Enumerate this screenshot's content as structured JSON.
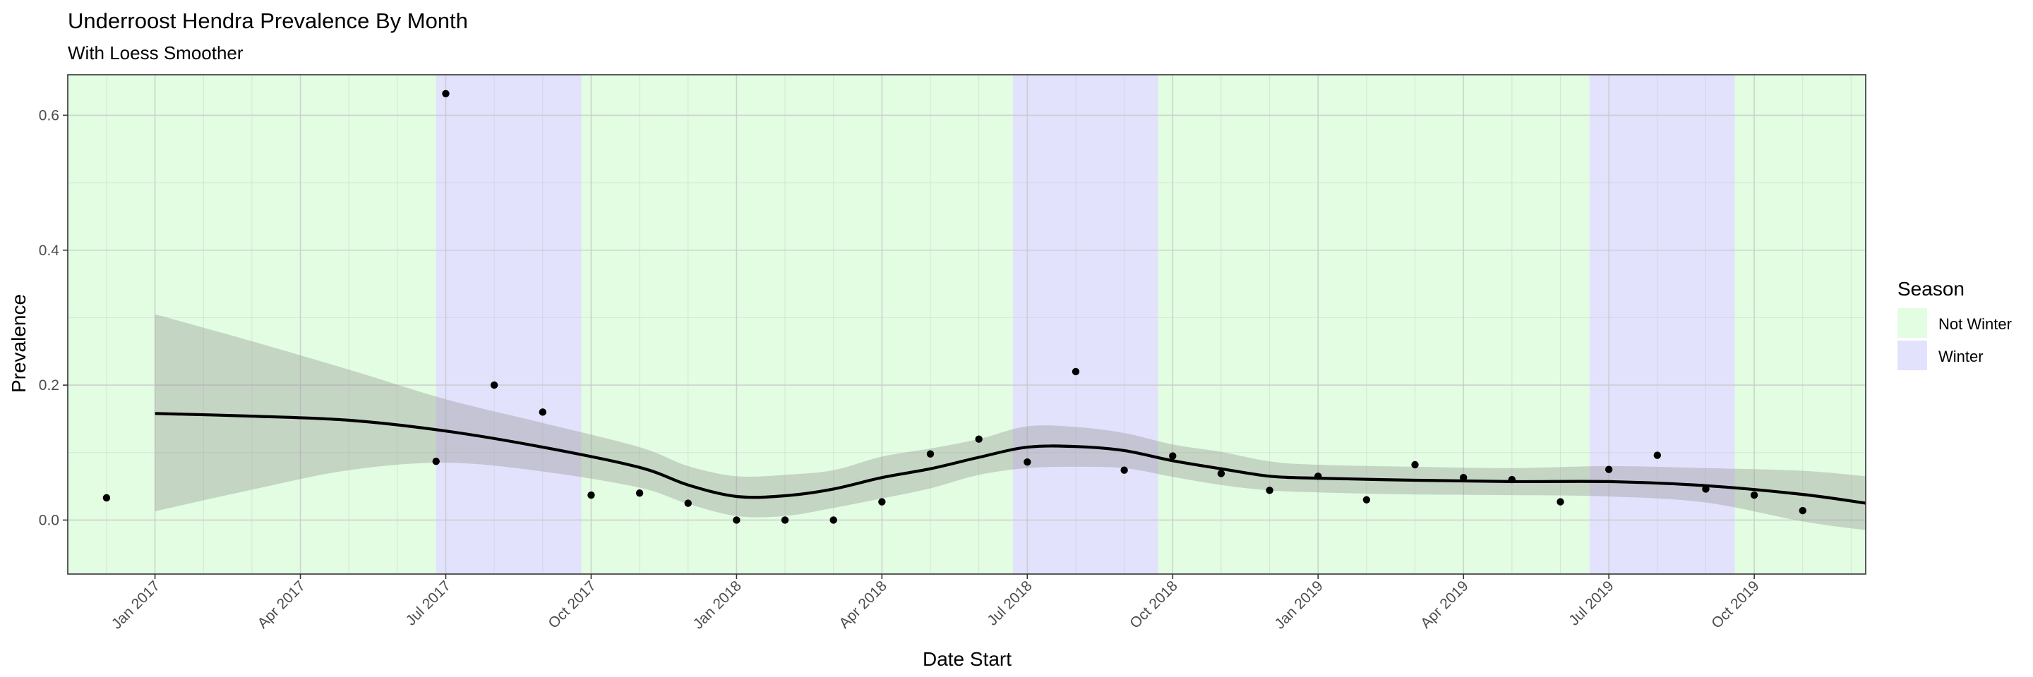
{
  "chart_data": {
    "type": "scatter",
    "title": "Underroost Hendra Prevalence By Month",
    "subtitle": "With Loess Smoother",
    "xlabel": "Date Start",
    "ylabel": "Prevalence",
    "x_range_months": [
      -1.8,
      35.3
    ],
    "x_origin": "2017-01",
    "ylim": [
      -0.08,
      0.66
    ],
    "y_ticks": [
      {
        "value": 0.0,
        "label": "0.0"
      },
      {
        "value": 0.2,
        "label": "0.2"
      },
      {
        "value": 0.4,
        "label": "0.4"
      },
      {
        "value": 0.6,
        "label": "0.6"
      }
    ],
    "x_ticks": [
      {
        "month": 0,
        "label": "Jan 2017"
      },
      {
        "month": 3,
        "label": "Apr 2017"
      },
      {
        "month": 6,
        "label": "Jul 2017"
      },
      {
        "month": 9,
        "label": "Oct 2017"
      },
      {
        "month": 12,
        "label": "Jan 2018"
      },
      {
        "month": 15,
        "label": "Apr 2018"
      },
      {
        "month": 18,
        "label": "Jul 2018"
      },
      {
        "month": 21,
        "label": "Oct 2018"
      },
      {
        "month": 24,
        "label": "Jan 2019"
      },
      {
        "month": 27,
        "label": "Apr 2019"
      },
      {
        "month": 30,
        "label": "Jul 2019"
      },
      {
        "month": 33,
        "label": "Oct 2019"
      }
    ],
    "seasons": [
      {
        "season": "Not Winter",
        "start": -1.8,
        "end": 5.8
      },
      {
        "season": "Winter",
        "start": 5.8,
        "end": 8.8
      },
      {
        "season": "Not Winter",
        "start": 8.8,
        "end": 17.7
      },
      {
        "season": "Winter",
        "start": 17.7,
        "end": 20.7
      },
      {
        "season": "Not Winter",
        "start": 20.7,
        "end": 29.6
      },
      {
        "season": "Winter",
        "start": 29.6,
        "end": 32.6
      },
      {
        "season": "Not Winter",
        "start": 32.6,
        "end": 35.3
      }
    ],
    "points": [
      {
        "x": -1.0,
        "y": 0.033
      },
      {
        "x": 5.8,
        "y": 0.087
      },
      {
        "x": 6.0,
        "y": 0.632
      },
      {
        "x": 7.0,
        "y": 0.2
      },
      {
        "x": 8.0,
        "y": 0.16
      },
      {
        "x": 9.0,
        "y": 0.037
      },
      {
        "x": 10.0,
        "y": 0.04
      },
      {
        "x": 11.0,
        "y": 0.025
      },
      {
        "x": 12.0,
        "y": 0.0
      },
      {
        "x": 13.0,
        "y": 0.0
      },
      {
        "x": 14.0,
        "y": 0.0
      },
      {
        "x": 15.0,
        "y": 0.027
      },
      {
        "x": 16.0,
        "y": 0.098
      },
      {
        "x": 17.0,
        "y": 0.12
      },
      {
        "x": 18.0,
        "y": 0.086
      },
      {
        "x": 19.0,
        "y": 0.22
      },
      {
        "x": 20.0,
        "y": 0.074
      },
      {
        "x": 21.0,
        "y": 0.095
      },
      {
        "x": 22.0,
        "y": 0.069
      },
      {
        "x": 23.0,
        "y": 0.044
      },
      {
        "x": 24.0,
        "y": 0.065
      },
      {
        "x": 25.0,
        "y": 0.03
      },
      {
        "x": 26.0,
        "y": 0.082
      },
      {
        "x": 27.0,
        "y": 0.063
      },
      {
        "x": 28.0,
        "y": 0.06
      },
      {
        "x": 29.0,
        "y": 0.027
      },
      {
        "x": 30.0,
        "y": 0.075
      },
      {
        "x": 31.0,
        "y": 0.096
      },
      {
        "x": 32.0,
        "y": 0.046
      },
      {
        "x": 33.0,
        "y": 0.037
      },
      {
        "x": 34.0,
        "y": 0.014
      }
    ],
    "smoother": [
      {
        "x": 0.0,
        "y": 0.158,
        "lo": 0.013,
        "hi": 0.305
      },
      {
        "x": 2.0,
        "y": 0.154,
        "lo": 0.045,
        "hi": 0.265
      },
      {
        "x": 4.0,
        "y": 0.148,
        "lo": 0.074,
        "hi": 0.223
      },
      {
        "x": 6.0,
        "y": 0.132,
        "lo": 0.085,
        "hi": 0.179
      },
      {
        "x": 8.0,
        "y": 0.108,
        "lo": 0.072,
        "hi": 0.144
      },
      {
        "x": 10.0,
        "y": 0.078,
        "lo": 0.048,
        "hi": 0.108
      },
      {
        "x": 11.0,
        "y": 0.052,
        "lo": 0.024,
        "hi": 0.08
      },
      {
        "x": 12.0,
        "y": 0.035,
        "lo": 0.006,
        "hi": 0.065
      },
      {
        "x": 13.0,
        "y": 0.036,
        "lo": 0.006,
        "hi": 0.067
      },
      {
        "x": 14.0,
        "y": 0.046,
        "lo": 0.018,
        "hi": 0.074
      },
      {
        "x": 15.0,
        "y": 0.063,
        "lo": 0.032,
        "hi": 0.094
      },
      {
        "x": 16.0,
        "y": 0.076,
        "lo": 0.047,
        "hi": 0.106
      },
      {
        "x": 17.0,
        "y": 0.093,
        "lo": 0.067,
        "hi": 0.12
      },
      {
        "x": 18.0,
        "y": 0.108,
        "lo": 0.077,
        "hi": 0.139
      },
      {
        "x": 19.0,
        "y": 0.109,
        "lo": 0.079,
        "hi": 0.138
      },
      {
        "x": 20.0,
        "y": 0.103,
        "lo": 0.077,
        "hi": 0.129
      },
      {
        "x": 21.0,
        "y": 0.088,
        "lo": 0.064,
        "hi": 0.112
      },
      {
        "x": 22.0,
        "y": 0.076,
        "lo": 0.052,
        "hi": 0.101
      },
      {
        "x": 23.0,
        "y": 0.065,
        "lo": 0.044,
        "hi": 0.087
      },
      {
        "x": 24.0,
        "y": 0.062,
        "lo": 0.041,
        "hi": 0.082
      },
      {
        "x": 26.0,
        "y": 0.059,
        "lo": 0.038,
        "hi": 0.079
      },
      {
        "x": 28.0,
        "y": 0.057,
        "lo": 0.037,
        "hi": 0.077
      },
      {
        "x": 30.0,
        "y": 0.057,
        "lo": 0.035,
        "hi": 0.08
      },
      {
        "x": 32.0,
        "y": 0.051,
        "lo": 0.026,
        "hi": 0.077
      },
      {
        "x": 34.0,
        "y": 0.038,
        "lo": -0.002,
        "hi": 0.073
      },
      {
        "x": 35.3,
        "y": 0.025,
        "lo": -0.015,
        "hi": 0.065
      }
    ],
    "legend": {
      "title": "Season",
      "position": "right",
      "items": [
        {
          "label": "Not Winter",
          "color": "#e2fde2"
        },
        {
          "label": "Winter",
          "color": "#e2e2fd"
        }
      ]
    },
    "colors": {
      "not_winter": "#e2fde2",
      "winter": "#e2e2fd",
      "ribbon": "#999999",
      "line": "#000000",
      "points": "#000000"
    }
  }
}
